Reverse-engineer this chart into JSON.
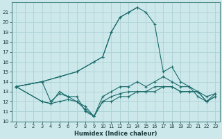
{
  "background_color": "#cde8ea",
  "grid_color": "#b0d4d8",
  "line_color": "#1a6b6b",
  "xlabel": "Humidex (Indice chaleur)",
  "xlim": [
    -0.5,
    23.5
  ],
  "ylim": [
    10,
    22
  ],
  "yticks": [
    10,
    11,
    12,
    13,
    14,
    15,
    16,
    17,
    18,
    19,
    20,
    21
  ],
  "xticks": [
    0,
    1,
    2,
    3,
    4,
    5,
    6,
    7,
    8,
    9,
    10,
    11,
    12,
    13,
    14,
    15,
    16,
    17,
    18,
    19,
    20,
    21,
    22,
    23
  ],
  "lines": [
    {
      "x": [
        0,
        3,
        5,
        7,
        9,
        10,
        11,
        12,
        13,
        14
      ],
      "y": [
        13.5,
        14.0,
        14.5,
        15.0,
        16.0,
        16.5,
        19.0,
        20.5,
        21.0,
        21.5
      ]
    },
    {
      "x": [
        0,
        3,
        5,
        7,
        9,
        10,
        11,
        12,
        13,
        14,
        15,
        16,
        17,
        18,
        19,
        20,
        21,
        22,
        23
      ],
      "y": [
        13.5,
        14.0,
        14.5,
        15.0,
        16.0,
        16.5,
        19.0,
        20.5,
        21.0,
        21.5,
        21.0,
        19.8,
        15.0,
        15.5,
        14.0,
        13.5,
        12.5,
        12.0,
        12.8
      ]
    },
    {
      "x": [
        0,
        3,
        4,
        5,
        6,
        7,
        8,
        9,
        10,
        11,
        12,
        13,
        14,
        15,
        16,
        17,
        18,
        19,
        20,
        21,
        22,
        23
      ],
      "y": [
        13.5,
        14.0,
        12.0,
        12.8,
        12.5,
        12.0,
        11.2,
        10.5,
        12.5,
        13.0,
        13.5,
        13.5,
        14.0,
        13.5,
        14.0,
        14.5,
        14.0,
        13.5,
        13.5,
        13.0,
        12.5,
        12.8
      ]
    },
    {
      "x": [
        0,
        3,
        4,
        5,
        6,
        7,
        8,
        9,
        10,
        11,
        12,
        13,
        14,
        15,
        16,
        17,
        18,
        19,
        20,
        21,
        22,
        23
      ],
      "y": [
        13.5,
        12.0,
        11.8,
        13.0,
        12.5,
        12.5,
        11.0,
        10.5,
        12.0,
        12.5,
        12.8,
        13.0,
        13.0,
        13.0,
        13.5,
        13.5,
        13.5,
        13.0,
        13.0,
        13.0,
        12.0,
        12.5
      ]
    },
    {
      "x": [
        0,
        3,
        4,
        5,
        6,
        7,
        8,
        9,
        10,
        11,
        12,
        13,
        14,
        15,
        16,
        17,
        18,
        19,
        20,
        21,
        22,
        23
      ],
      "y": [
        13.5,
        12.0,
        11.8,
        12.0,
        12.2,
        12.0,
        11.5,
        10.5,
        12.0,
        12.0,
        12.5,
        12.5,
        13.0,
        13.0,
        13.0,
        13.5,
        13.5,
        13.0,
        13.0,
        13.0,
        12.0,
        12.5
      ]
    }
  ]
}
